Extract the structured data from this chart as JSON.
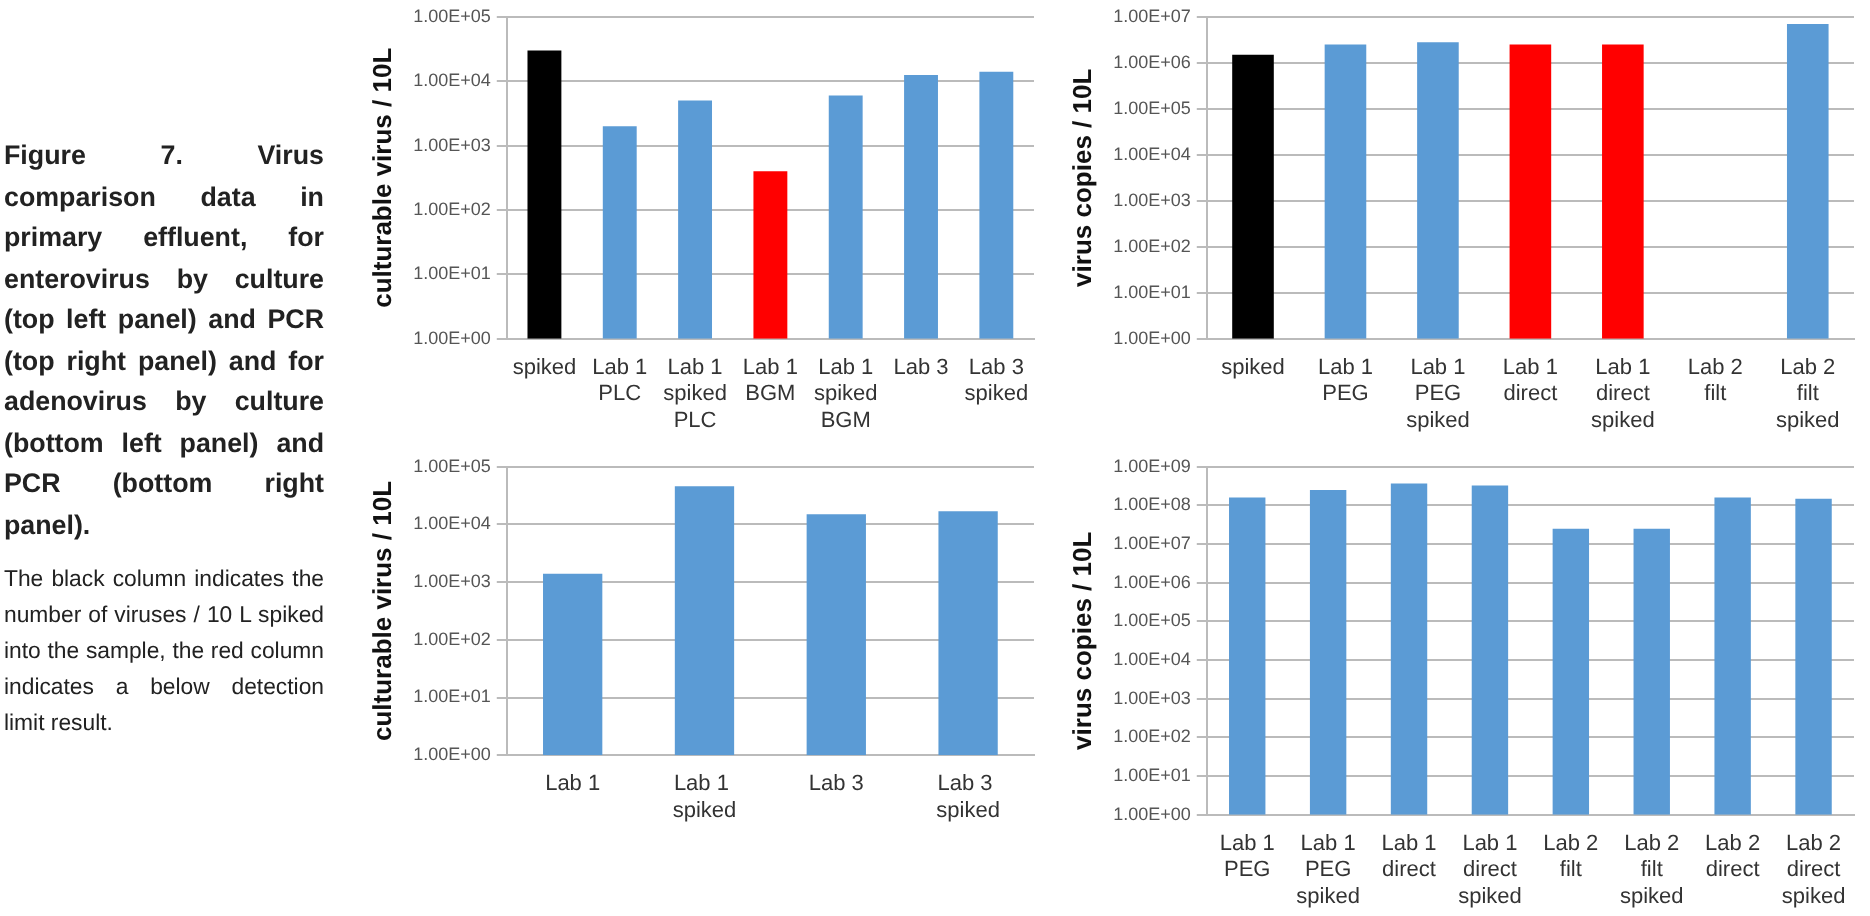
{
  "chart_data": [
    {
      "type": "other",
      "title": "Figure 7. Virus comparison data in primary effluent, for enterovirus by culture (top left panel) and PCR (top right panel) and for adenovirus by culture (bottom left panel) and PCR (bottom right panel).",
      "annotations": [
        "The black column indicates the number of viruses / 10 L spiked into the sample, the red column indicates a below detection limit result."
      ]
    },
    {
      "type": "bar",
      "ylabel": "culturable virus / 10L",
      "categories": [
        "spiked",
        "Lab 1 PLC",
        "Lab 1 spiked PLC",
        "Lab 1 BGM",
        "Lab 1 spiked BGM",
        "Lab 3",
        "Lab 3 spiked"
      ],
      "values": [
        30000,
        2000,
        5000,
        400,
        6000,
        12500,
        14000
      ],
      "colors": [
        "#000000",
        "#5b9bd5",
        "#5b9bd5",
        "#ff0000",
        "#5b9bd5",
        "#5b9bd5",
        "#5b9bd5"
      ],
      "log": true,
      "ylim": [
        1,
        100000
      ],
      "yticks": [
        {
          "value": 1,
          "label": "1.00E+00"
        },
        {
          "value": 10,
          "label": "1.00E+01"
        },
        {
          "value": 100,
          "label": "1.00E+02"
        },
        {
          "value": 1000,
          "label": "1.00E+03"
        },
        {
          "value": 10000,
          "label": "1.00E+04"
        },
        {
          "value": 100000,
          "label": "1.00E+05"
        }
      ],
      "grid": "y",
      "legend": false
    },
    {
      "type": "bar",
      "ylabel": "virus copies / 10L",
      "categories": [
        "spiked",
        "Lab 1 PEG",
        "Lab 1 PEG spiked",
        "Lab 1 direct",
        "Lab 1 direct spiked",
        "Lab 2 filt",
        "Lab 2 filt spiked"
      ],
      "values": [
        1500000,
        2500000,
        2800000,
        2500000,
        2500000,
        null,
        7000000
      ],
      "colors": [
        "#000000",
        "#5b9bd5",
        "#5b9bd5",
        "#ff0000",
        "#ff0000",
        "#5b9bd5",
        "#5b9bd5"
      ],
      "log": true,
      "ylim": [
        1,
        10000000
      ],
      "yticks": [
        {
          "value": 1,
          "label": "1.00E+00"
        },
        {
          "value": 10,
          "label": "1.00E+01"
        },
        {
          "value": 100,
          "label": "1.00E+02"
        },
        {
          "value": 1000,
          "label": "1.00E+03"
        },
        {
          "value": 10000,
          "label": "1.00E+04"
        },
        {
          "value": 100000,
          "label": "1.00E+05"
        },
        {
          "value": 1000000,
          "label": "1.00E+06"
        },
        {
          "value": 10000000,
          "label": "1.00E+07"
        }
      ],
      "grid": "y",
      "legend": false
    },
    {
      "type": "bar",
      "ylabel": "culturable virus / 10L",
      "categories": [
        "Lab 1",
        "Lab 1  spiked",
        "Lab 3",
        "Lab 3  spiked"
      ],
      "values": [
        1400,
        46000,
        15000,
        17000
      ],
      "colors": [
        "#5b9bd5",
        "#5b9bd5",
        "#5b9bd5",
        "#5b9bd5"
      ],
      "log": true,
      "ylim": [
        1,
        100000
      ],
      "yticks": [
        {
          "value": 1,
          "label": "1.00E+00"
        },
        {
          "value": 10,
          "label": "1.00E+01"
        },
        {
          "value": 100,
          "label": "1.00E+02"
        },
        {
          "value": 1000,
          "label": "1.00E+03"
        },
        {
          "value": 10000,
          "label": "1.00E+04"
        },
        {
          "value": 100000,
          "label": "1.00E+05"
        }
      ],
      "grid": "y",
      "legend": false
    },
    {
      "type": "bar",
      "ylabel": "virus copies / 10L",
      "categories": [
        "Lab 1 PEG",
        "Lab 1 PEG spiked",
        "Lab 1 direct",
        "Lab 1 direct spiked",
        "Lab 2 filt",
        "Lab 2 filt spiked",
        "Lab 2 direct",
        "Lab 2 direct spiked"
      ],
      "values": [
        160000000,
        250000000,
        370000000,
        330000000,
        25000000,
        25000000,
        160000000,
        150000000
      ],
      "colors": [
        "#5b9bd5",
        "#5b9bd5",
        "#5b9bd5",
        "#5b9bd5",
        "#5b9bd5",
        "#5b9bd5",
        "#5b9bd5",
        "#5b9bd5"
      ],
      "log": true,
      "ylim": [
        1,
        1000000000
      ],
      "yticks": [
        {
          "value": 1,
          "label": "1.00E+00"
        },
        {
          "value": 10,
          "label": "1.00E+01"
        },
        {
          "value": 100,
          "label": "1.00E+02"
        },
        {
          "value": 1000,
          "label": "1.00E+03"
        },
        {
          "value": 10000,
          "label": "1.00E+04"
        },
        {
          "value": 100000,
          "label": "1.00E+05"
        },
        {
          "value": 1000000,
          "label": "1.00E+06"
        },
        {
          "value": 10000000,
          "label": "1.00E+07"
        },
        {
          "value": 100000000,
          "label": "1.00E+08"
        },
        {
          "value": 1000000000,
          "label": "1.00E+09"
        }
      ],
      "grid": "y",
      "legend": false
    }
  ]
}
